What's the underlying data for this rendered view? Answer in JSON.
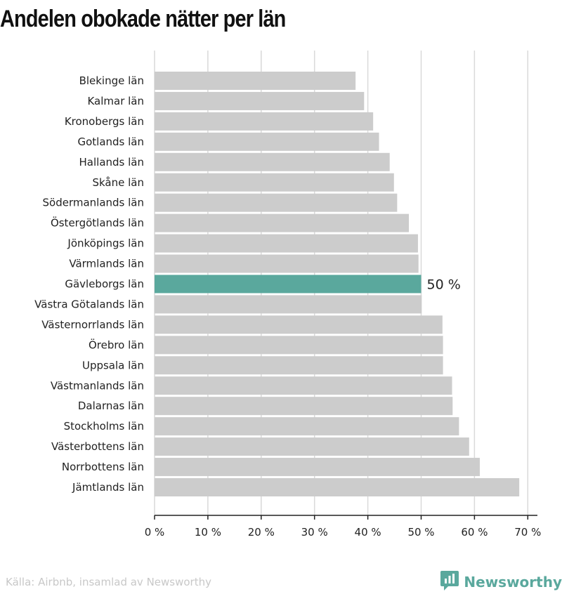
{
  "title": "Andelen obokade nätter per län",
  "source": "Källa: Airbnb, insamlad av Newsworthy",
  "brand": "Newsworthy",
  "colors": {
    "bar": "#cccccc",
    "highlight": "#5aa89d",
    "grid": "#d9d9d9",
    "axis": "#222222",
    "brand": "#5aa89d"
  },
  "chart_data": {
    "type": "bar",
    "orientation": "horizontal",
    "categories": [
      "Blekinge län",
      "Kalmar län",
      "Kronobergs län",
      "Gotlands län",
      "Hallands län",
      "Skåne län",
      "Södermanlands län",
      "Östergötlands län",
      "Jönköpings län",
      "Värmlands län",
      "Gävleborgs län",
      "Västra Götalands län",
      "Västernorrlands län",
      "Örebro län",
      "Uppsala län",
      "Västmanlands län",
      "Dalarnas län",
      "Stockholms län",
      "Västerbottens län",
      "Norrbottens län",
      "Jämtlands län"
    ],
    "values": [
      37.7,
      39.3,
      41.0,
      42.1,
      44.1,
      44.9,
      45.5,
      47.7,
      49.4,
      49.5,
      50.0,
      50.1,
      54.0,
      54.1,
      54.1,
      55.8,
      55.9,
      57.1,
      59.0,
      61.0,
      68.4
    ],
    "highlight": "Gävleborgs län",
    "highlight_label": "50 %",
    "xlim": [
      0,
      72
    ],
    "xticks": [
      0,
      10,
      20,
      30,
      40,
      50,
      60,
      70
    ],
    "xtick_labels": [
      "0 %",
      "10 %",
      "20 %",
      "30 %",
      "40 %",
      "50 %",
      "60 %",
      "70 %"
    ],
    "grid": true
  }
}
